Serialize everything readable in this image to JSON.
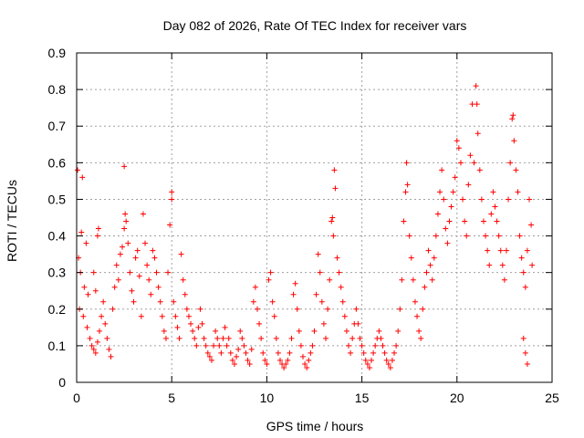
{
  "chart_data": {
    "type": "scatter",
    "title": "Day 082 of 2026, Rate Of TEC Index for receiver vars",
    "xlabel": "GPS time / hours",
    "ylabel": "ROTI / TECUs",
    "xlim": [
      0,
      25
    ],
    "ylim": [
      0,
      0.9
    ],
    "xticks": [
      0,
      5,
      10,
      15,
      20,
      25
    ],
    "xtick_labels": [
      "0",
      "5",
      "10",
      "15",
      "20",
      "25"
    ],
    "yticks": [
      0,
      0.1,
      0.2,
      0.3,
      0.4,
      0.5,
      0.6,
      0.7,
      0.8,
      0.9
    ],
    "ytick_labels": [
      "0",
      "0.1",
      "0.2",
      "0.3",
      "0.4",
      "0.5",
      "0.6",
      "0.7",
      "0.8",
      "0.9"
    ],
    "grid": true,
    "marker": "+",
    "color": "#ff0000",
    "series": [
      {
        "name": "ROTI",
        "points": [
          [
            0.05,
            0.58
          ],
          [
            0.3,
            0.56
          ],
          [
            0.25,
            0.41
          ],
          [
            0.5,
            0.38
          ],
          [
            0.1,
            0.34
          ],
          [
            0.2,
            0.3
          ],
          [
            0.4,
            0.26
          ],
          [
            0.6,
            0.24
          ],
          [
            0.15,
            0.2
          ],
          [
            0.35,
            0.18
          ],
          [
            0.55,
            0.15
          ],
          [
            0.7,
            0.12
          ],
          [
            0.8,
            0.1
          ],
          [
            0.9,
            0.09
          ],
          [
            1.0,
            0.08
          ],
          [
            1.1,
            0.11
          ],
          [
            1.2,
            0.14
          ],
          [
            1.3,
            0.18
          ],
          [
            1.4,
            0.22
          ],
          [
            1.5,
            0.16
          ],
          [
            1.6,
            0.12
          ],
          [
            1.7,
            0.09
          ],
          [
            1.8,
            0.07
          ],
          [
            1.1,
            0.4
          ],
          [
            1.15,
            0.42
          ],
          [
            0.9,
            0.3
          ],
          [
            1.0,
            0.25
          ],
          [
            1.9,
            0.2
          ],
          [
            2.0,
            0.26
          ],
          [
            2.1,
            0.32
          ],
          [
            2.2,
            0.28
          ],
          [
            2.3,
            0.35
          ],
          [
            2.4,
            0.37
          ],
          [
            2.5,
            0.42
          ],
          [
            2.5,
            0.59
          ],
          [
            2.55,
            0.46
          ],
          [
            2.6,
            0.44
          ],
          [
            2.7,
            0.38
          ],
          [
            2.8,
            0.3
          ],
          [
            2.9,
            0.25
          ],
          [
            3.0,
            0.22
          ],
          [
            3.1,
            0.34
          ],
          [
            3.2,
            0.36
          ],
          [
            3.3,
            0.29
          ],
          [
            3.4,
            0.18
          ],
          [
            3.5,
            0.46
          ],
          [
            3.6,
            0.38
          ],
          [
            3.7,
            0.32
          ],
          [
            3.8,
            0.28
          ],
          [
            3.9,
            0.24
          ],
          [
            4.0,
            0.36
          ],
          [
            4.1,
            0.34
          ],
          [
            4.2,
            0.3
          ],
          [
            4.3,
            0.26
          ],
          [
            4.4,
            0.22
          ],
          [
            4.5,
            0.18
          ],
          [
            4.6,
            0.14
          ],
          [
            4.7,
            0.12
          ],
          [
            4.8,
            0.3
          ],
          [
            4.9,
            0.43
          ],
          [
            5.0,
            0.52
          ],
          [
            5.0,
            0.5
          ],
          [
            5.1,
            0.22
          ],
          [
            5.2,
            0.18
          ],
          [
            5.3,
            0.15
          ],
          [
            5.4,
            0.12
          ],
          [
            5.5,
            0.35
          ],
          [
            5.6,
            0.28
          ],
          [
            5.7,
            0.24
          ],
          [
            5.8,
            0.2
          ],
          [
            5.9,
            0.18
          ],
          [
            6.0,
            0.16
          ],
          [
            6.1,
            0.14
          ],
          [
            6.2,
            0.12
          ],
          [
            6.3,
            0.1
          ],
          [
            6.4,
            0.15
          ],
          [
            6.5,
            0.2
          ],
          [
            6.6,
            0.16
          ],
          [
            6.7,
            0.12
          ],
          [
            6.8,
            0.1
          ],
          [
            6.9,
            0.08
          ],
          [
            7.0,
            0.07
          ],
          [
            7.1,
            0.06
          ],
          [
            7.2,
            0.1
          ],
          [
            7.3,
            0.14
          ],
          [
            7.4,
            0.12
          ],
          [
            7.5,
            0.1
          ],
          [
            7.6,
            0.08
          ],
          [
            7.7,
            0.12
          ],
          [
            7.8,
            0.15
          ],
          [
            7.9,
            0.1
          ],
          [
            8.0,
            0.12
          ],
          [
            8.1,
            0.08
          ],
          [
            8.2,
            0.06
          ],
          [
            8.3,
            0.05
          ],
          [
            8.4,
            0.07
          ],
          [
            8.5,
            0.09
          ],
          [
            8.6,
            0.14
          ],
          [
            8.7,
            0.12
          ],
          [
            8.8,
            0.1
          ],
          [
            8.9,
            0.08
          ],
          [
            9.0,
            0.06
          ],
          [
            9.1,
            0.05
          ],
          [
            9.2,
            0.09
          ],
          [
            9.3,
            0.22
          ],
          [
            9.4,
            0.26
          ],
          [
            9.5,
            0.2
          ],
          [
            9.6,
            0.16
          ],
          [
            9.7,
            0.12
          ],
          [
            9.8,
            0.08
          ],
          [
            9.9,
            0.06
          ],
          [
            10.0,
            0.05
          ],
          [
            10.1,
            0.28
          ],
          [
            10.2,
            0.3
          ],
          [
            10.3,
            0.22
          ],
          [
            10.4,
            0.18
          ],
          [
            10.5,
            0.12
          ],
          [
            10.6,
            0.08
          ],
          [
            10.7,
            0.06
          ],
          [
            10.8,
            0.05
          ],
          [
            10.9,
            0.04
          ],
          [
            11.0,
            0.05
          ],
          [
            11.1,
            0.06
          ],
          [
            11.2,
            0.08
          ],
          [
            11.3,
            0.12
          ],
          [
            11.4,
            0.24
          ],
          [
            11.5,
            0.27
          ],
          [
            11.6,
            0.2
          ],
          [
            11.7,
            0.14
          ],
          [
            11.8,
            0.1
          ],
          [
            11.9,
            0.07
          ],
          [
            12.0,
            0.05
          ],
          [
            12.1,
            0.04
          ],
          [
            12.2,
            0.06
          ],
          [
            12.3,
            0.08
          ],
          [
            12.4,
            0.1
          ],
          [
            12.5,
            0.14
          ],
          [
            12.6,
            0.24
          ],
          [
            12.7,
            0.35
          ],
          [
            12.8,
            0.3
          ],
          [
            12.9,
            0.22
          ],
          [
            13.0,
            0.16
          ],
          [
            13.1,
            0.12
          ],
          [
            13.2,
            0.2
          ],
          [
            13.3,
            0.28
          ],
          [
            13.4,
            0.44
          ],
          [
            13.45,
            0.45
          ],
          [
            13.5,
            0.4
          ],
          [
            13.55,
            0.58
          ],
          [
            13.6,
            0.53
          ],
          [
            13.7,
            0.34
          ],
          [
            13.8,
            0.3
          ],
          [
            13.9,
            0.26
          ],
          [
            14.0,
            0.22
          ],
          [
            14.1,
            0.18
          ],
          [
            14.2,
            0.14
          ],
          [
            14.3,
            0.1
          ],
          [
            14.4,
            0.08
          ],
          [
            14.5,
            0.12
          ],
          [
            14.6,
            0.16
          ],
          [
            14.7,
            0.2
          ],
          [
            14.8,
            0.16
          ],
          [
            14.9,
            0.12
          ],
          [
            15.0,
            0.1
          ],
          [
            15.1,
            0.08
          ],
          [
            15.2,
            0.06
          ],
          [
            15.3,
            0.05
          ],
          [
            15.4,
            0.04
          ],
          [
            15.5,
            0.06
          ],
          [
            15.6,
            0.08
          ],
          [
            15.7,
            0.1
          ],
          [
            15.8,
            0.12
          ],
          [
            15.9,
            0.14
          ],
          [
            16.0,
            0.12
          ],
          [
            16.1,
            0.1
          ],
          [
            16.2,
            0.08
          ],
          [
            16.3,
            0.06
          ],
          [
            16.4,
            0.05
          ],
          [
            16.5,
            0.04
          ],
          [
            16.6,
            0.06
          ],
          [
            16.7,
            0.08
          ],
          [
            16.8,
            0.1
          ],
          [
            16.9,
            0.14
          ],
          [
            17.0,
            0.2
          ],
          [
            17.1,
            0.28
          ],
          [
            17.2,
            0.44
          ],
          [
            17.3,
            0.52
          ],
          [
            17.35,
            0.6
          ],
          [
            17.4,
            0.54
          ],
          [
            17.5,
            0.4
          ],
          [
            17.6,
            0.34
          ],
          [
            17.7,
            0.28
          ],
          [
            17.8,
            0.22
          ],
          [
            17.9,
            0.18
          ],
          [
            18.0,
            0.14
          ],
          [
            18.1,
            0.12
          ],
          [
            18.2,
            0.2
          ],
          [
            18.3,
            0.26
          ],
          [
            18.4,
            0.3
          ],
          [
            18.5,
            0.36
          ],
          [
            18.6,
            0.32
          ],
          [
            18.7,
            0.28
          ],
          [
            18.8,
            0.34
          ],
          [
            18.9,
            0.4
          ],
          [
            19.0,
            0.46
          ],
          [
            19.1,
            0.52
          ],
          [
            19.2,
            0.58
          ],
          [
            19.3,
            0.5
          ],
          [
            19.4,
            0.42
          ],
          [
            19.5,
            0.38
          ],
          [
            19.6,
            0.44
          ],
          [
            19.7,
            0.48
          ],
          [
            19.8,
            0.52
          ],
          [
            19.9,
            0.56
          ],
          [
            20.0,
            0.66
          ],
          [
            20.1,
            0.64
          ],
          [
            20.2,
            0.6
          ],
          [
            20.3,
            0.5
          ],
          [
            20.4,
            0.44
          ],
          [
            20.5,
            0.4
          ],
          [
            20.6,
            0.54
          ],
          [
            20.7,
            0.62
          ],
          [
            20.8,
            0.76
          ],
          [
            20.9,
            0.6
          ],
          [
            21.0,
            0.81
          ],
          [
            21.05,
            0.76
          ],
          [
            21.1,
            0.68
          ],
          [
            21.2,
            0.58
          ],
          [
            21.3,
            0.5
          ],
          [
            21.4,
            0.44
          ],
          [
            21.5,
            0.4
          ],
          [
            21.6,
            0.36
          ],
          [
            21.7,
            0.32
          ],
          [
            21.8,
            0.46
          ],
          [
            21.9,
            0.52
          ],
          [
            22.0,
            0.48
          ],
          [
            22.1,
            0.44
          ],
          [
            22.2,
            0.4
          ],
          [
            22.3,
            0.36
          ],
          [
            22.4,
            0.32
          ],
          [
            22.5,
            0.28
          ],
          [
            22.6,
            0.36
          ],
          [
            22.7,
            0.5
          ],
          [
            22.8,
            0.6
          ],
          [
            22.9,
            0.72
          ],
          [
            22.95,
            0.73
          ],
          [
            23.0,
            0.66
          ],
          [
            23.1,
            0.58
          ],
          [
            23.2,
            0.52
          ],
          [
            23.3,
            0.4
          ],
          [
            23.4,
            0.34
          ],
          [
            23.5,
            0.3
          ],
          [
            23.6,
            0.26
          ],
          [
            23.7,
            0.36
          ],
          [
            23.8,
            0.5
          ],
          [
            23.9,
            0.43
          ],
          [
            23.95,
            0.32
          ],
          [
            23.5,
            0.12
          ],
          [
            23.6,
            0.08
          ],
          [
            23.7,
            0.05
          ]
        ]
      }
    ]
  }
}
